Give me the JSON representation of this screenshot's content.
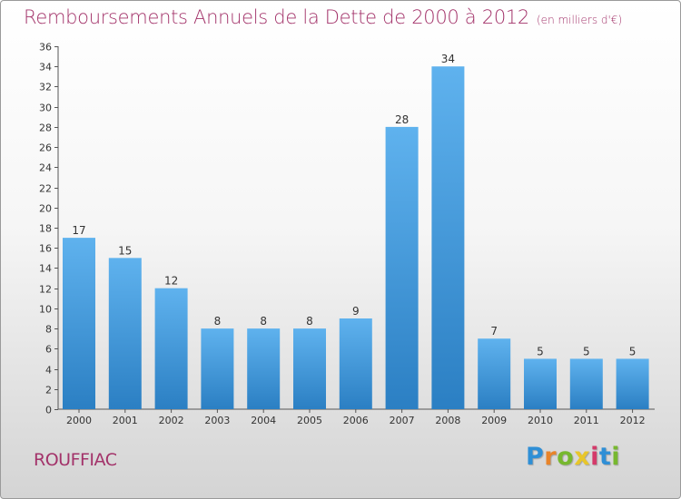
{
  "header": {
    "title": "Remboursements Annuels de la Dette de 2000 à 2012",
    "unit": "(en milliers d'€)"
  },
  "footer": {
    "town": "ROUFFIAC",
    "logo_letters": [
      "P",
      "r",
      "o",
      "x",
      "i",
      "t",
      "i"
    ]
  },
  "colors": {
    "title": "#a3336a",
    "bar_top": "#5fb2ee",
    "bar_bottom": "#2b7fc3"
  },
  "chart_data": {
    "type": "bar",
    "title": "Remboursements Annuels de la Dette de 2000 à 2012",
    "xlabel": "",
    "ylabel": "",
    "categories": [
      "2000",
      "2001",
      "2002",
      "2003",
      "2004",
      "2005",
      "2006",
      "2007",
      "2008",
      "2009",
      "2010",
      "2011",
      "2012"
    ],
    "values": [
      17,
      15,
      12,
      8,
      8,
      8,
      9,
      28,
      34,
      7,
      5,
      5,
      5
    ],
    "ylim": [
      0,
      36
    ],
    "yticks": [
      0,
      2,
      4,
      6,
      8,
      10,
      12,
      14,
      16,
      18,
      20,
      22,
      24,
      26,
      28,
      30,
      32,
      34,
      36
    ],
    "grid": false
  }
}
